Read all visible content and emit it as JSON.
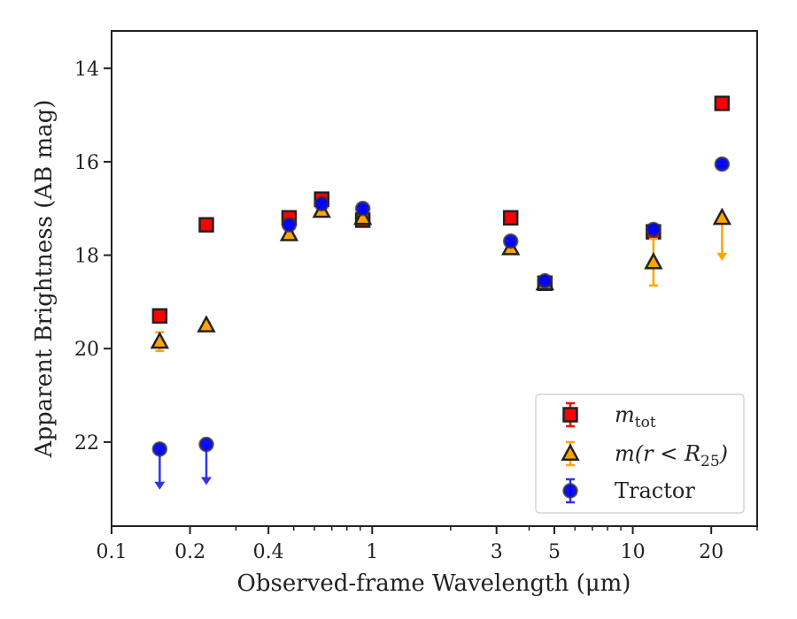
{
  "chart_data": {
    "type": "scatter",
    "xlabel": "Observed-frame Wavelength (μm)",
    "ylabel": "Apparent Brightness (AB mag)",
    "x_scale": "log",
    "xlim": [
      0.1,
      30
    ],
    "ylim": [
      23.8,
      13.2
    ],
    "y_inverted": true,
    "grid": false,
    "legend_position": "lower-right",
    "x_ticks": [
      {
        "value": 0.1,
        "label": "0.1"
      },
      {
        "value": 0.2,
        "label": "0.2"
      },
      {
        "value": 0.4,
        "label": "0.4"
      },
      {
        "value": 1,
        "label": "1"
      },
      {
        "value": 3,
        "label": "3"
      },
      {
        "value": 5,
        "label": "5"
      },
      {
        "value": 10,
        "label": "10"
      },
      {
        "value": 20,
        "label": "20"
      }
    ],
    "y_ticks": [
      {
        "value": 14,
        "label": "14"
      },
      {
        "value": 16,
        "label": "16"
      },
      {
        "value": 18,
        "label": "18"
      },
      {
        "value": 20,
        "label": "20"
      },
      {
        "value": 22,
        "label": "22"
      }
    ],
    "series": [
      {
        "name": "m_tot",
        "legend_main": "m",
        "legend_sub": "tot",
        "marker": "square",
        "color": "#ff0000",
        "edge_color": "#222222",
        "errbar_color": "#ff0000",
        "points": [
          {
            "x": 0.153,
            "y": 19.3,
            "err": 0.1
          },
          {
            "x": 0.231,
            "y": 17.35,
            "err": 0.05
          },
          {
            "x": 0.48,
            "y": 17.2,
            "err": 0.08
          },
          {
            "x": 0.64,
            "y": 16.8,
            "err": 0.08
          },
          {
            "x": 0.92,
            "y": 17.25,
            "err": 0.08
          },
          {
            "x": 3.4,
            "y": 17.2,
            "err": 0.05
          },
          {
            "x": 4.6,
            "y": 18.6,
            "err": 0.05
          },
          {
            "x": 12,
            "y": 17.5,
            "err": 0.08
          },
          {
            "x": 22,
            "y": 14.75,
            "err": 0.05
          }
        ]
      },
      {
        "name": "m(r < R25)",
        "legend_main": "m(r < R",
        "legend_sub": "25",
        "legend_tail": ")",
        "marker": "triangle",
        "color": "#ffa500",
        "edge_color": "#222222",
        "errbar_color": "#ffa500",
        "points": [
          {
            "x": 0.153,
            "y": 19.85,
            "err": 0.2
          },
          {
            "x": 0.231,
            "y": 19.5,
            "err": 0.05
          },
          {
            "x": 0.48,
            "y": 17.55,
            "err": 0.05
          },
          {
            "x": 0.64,
            "y": 17.05,
            "err": 0.05
          },
          {
            "x": 0.92,
            "y": 17.2,
            "err": 0.05
          },
          {
            "x": 3.4,
            "y": 17.85,
            "err": 0.05
          },
          {
            "x": 4.6,
            "y": 18.6,
            "err": 0.05
          },
          {
            "x": 12,
            "y": 18.15,
            "err": 0.5
          },
          {
            "x": 22,
            "y": 17.2,
            "upper_limit": true,
            "arrow_to": 18.1
          }
        ]
      },
      {
        "name": "Tractor",
        "legend_main": "Tractor",
        "marker": "circle",
        "color": "#0000ff",
        "edge_color": "#333333",
        "errbar_color": "#3333ee",
        "points": [
          {
            "x": 0.153,
            "y": 22.15,
            "upper_limit": true,
            "arrow_to": 23.0
          },
          {
            "x": 0.231,
            "y": 22.05,
            "upper_limit": true,
            "arrow_to": 22.9
          },
          {
            "x": 0.48,
            "y": 17.35,
            "err": 0.05
          },
          {
            "x": 0.64,
            "y": 16.9,
            "err": 0.05
          },
          {
            "x": 0.92,
            "y": 17.0,
            "err": 0.05
          },
          {
            "x": 3.4,
            "y": 17.7,
            "err": 0.05
          },
          {
            "x": 4.6,
            "y": 18.55,
            "err": 0.05
          },
          {
            "x": 12,
            "y": 17.45,
            "err": 0.05
          },
          {
            "x": 22,
            "y": 16.05,
            "err": 0.05
          }
        ]
      }
    ]
  }
}
